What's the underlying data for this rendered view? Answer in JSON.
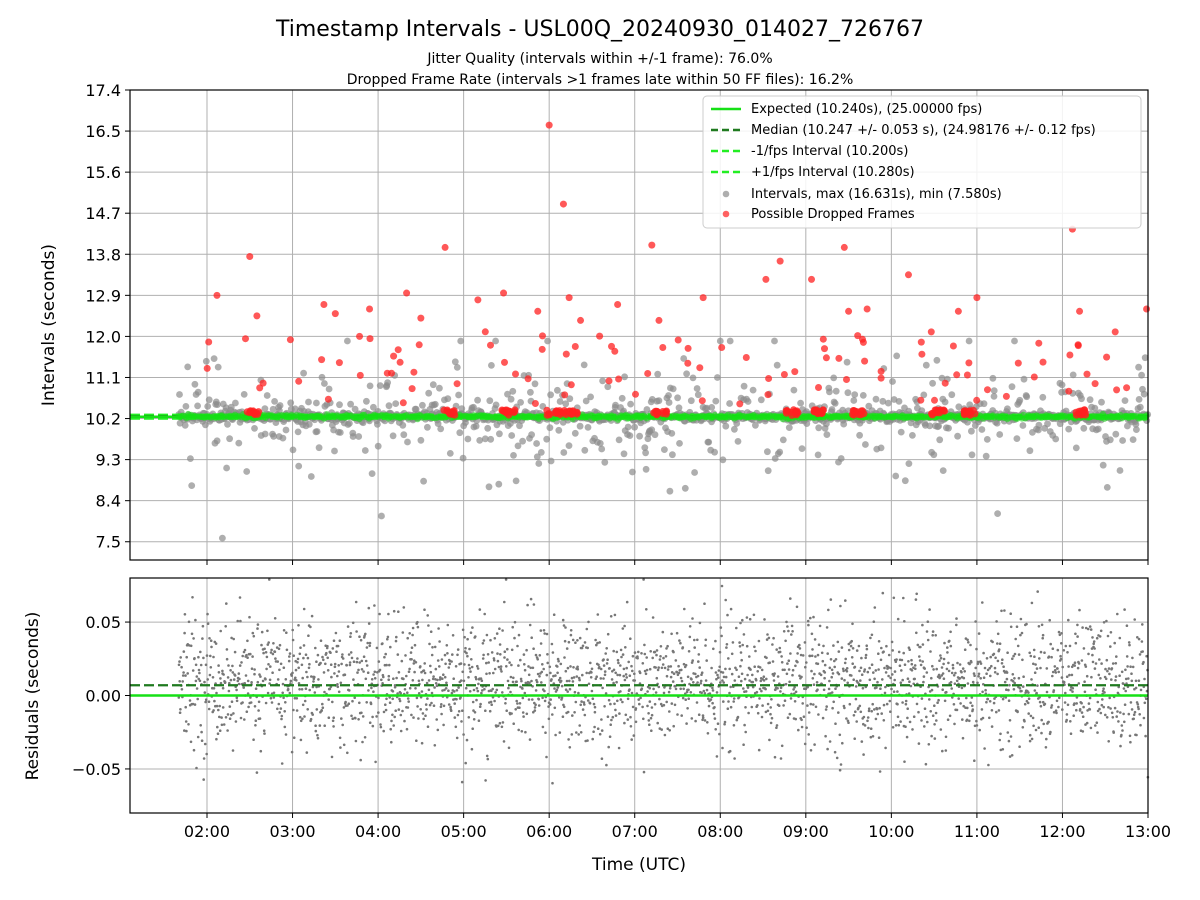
{
  "title": "Timestamp Intervals - USL00Q_20240930_014027_726767",
  "subtitle_line1": "Jitter Quality (intervals within +/-1 frame): 76.0%",
  "subtitle_line2": "Dropped Frame Rate (intervals >1 frames late within 50 FF files): 16.2%",
  "colors": {
    "expected": "#16e016",
    "median": "#1f7a1f",
    "interval_band": "#22ee22",
    "intervals": "#8c8c8c",
    "dropped": "#ff2020",
    "residual": "#777777",
    "grid": "#b0b0b0"
  },
  "chart_data": [
    {
      "type": "scatter",
      "name": "intervals-panel",
      "ylabel": "Intervals (seconds)",
      "ylim": [
        7.1,
        17.4
      ],
      "yticks": [
        "7.5",
        "8.4",
        "9.3",
        "10.2",
        "11.1",
        "12.0",
        "12.9",
        "13.8",
        "14.7",
        "15.6",
        "16.5",
        "17.4"
      ],
      "xlim_hours": [
        1.1,
        13.0
      ],
      "grid": true,
      "legend_position": "top-right",
      "legend": [
        "Expected (10.240s), (25.00000 fps)",
        "Median (10.247 +/- 0.053 s), (24.98176 +/- 0.12 fps)",
        "-1/fps Interval (10.200s)",
        "+1/fps Interval (10.280s)",
        "Intervals, max (16.631s), min (7.580s)",
        "Possible Dropped Frames"
      ],
      "expected_interval": 10.24,
      "median_interval": 10.247,
      "lower_interval": 10.2,
      "upper_interval": 10.28,
      "max_interval": 16.631,
      "min_interval": 7.58,
      "data_start_time": "01:40",
      "dropped_frames_sample": [
        {
          "t": "02:07",
          "y": 12.9
        },
        {
          "t": "02:27",
          "y": 11.95
        },
        {
          "t": "02:30",
          "y": 13.75
        },
        {
          "t": "02:35",
          "y": 12.45
        },
        {
          "t": "03:22",
          "y": 12.7
        },
        {
          "t": "03:30",
          "y": 12.5
        },
        {
          "t": "03:47",
          "y": 12.0
        },
        {
          "t": "03:54",
          "y": 12.6
        },
        {
          "t": "04:20",
          "y": 12.95
        },
        {
          "t": "04:30",
          "y": 12.4
        },
        {
          "t": "04:47",
          "y": 13.95
        },
        {
          "t": "05:10",
          "y": 12.8
        },
        {
          "t": "05:28",
          "y": 12.95
        },
        {
          "t": "05:52",
          "y": 12.55
        },
        {
          "t": "06:00",
          "y": 16.63
        },
        {
          "t": "06:10",
          "y": 14.9
        },
        {
          "t": "06:14",
          "y": 12.85
        },
        {
          "t": "06:22",
          "y": 12.35
        },
        {
          "t": "06:48",
          "y": 12.7
        },
        {
          "t": "07:12",
          "y": 14.0
        },
        {
          "t": "07:17",
          "y": 12.35
        },
        {
          "t": "07:48",
          "y": 12.85
        },
        {
          "t": "08:32",
          "y": 13.25
        },
        {
          "t": "08:42",
          "y": 13.65
        },
        {
          "t": "09:04",
          "y": 13.25
        },
        {
          "t": "09:27",
          "y": 13.95
        },
        {
          "t": "09:30",
          "y": 12.55
        },
        {
          "t": "09:43",
          "y": 12.6
        },
        {
          "t": "10:12",
          "y": 13.35
        },
        {
          "t": "10:28",
          "y": 12.1
        },
        {
          "t": "10:47",
          "y": 12.55
        },
        {
          "t": "11:00",
          "y": 12.85
        },
        {
          "t": "12:07",
          "y": 14.35
        },
        {
          "t": "12:12",
          "y": 12.55
        },
        {
          "t": "12:37",
          "y": 12.1
        },
        {
          "t": "12:59",
          "y": 12.6
        }
      ]
    },
    {
      "type": "scatter",
      "name": "residuals-panel",
      "ylabel": "Residuals (seconds)",
      "xlabel": "Time (UTC)",
      "ylim": [
        -0.08,
        0.08
      ],
      "yticks": [
        "−0.05",
        "0.00",
        "0.05"
      ],
      "xticks": [
        "02:00",
        "03:00",
        "04:00",
        "05:00",
        "06:00",
        "07:00",
        "08:00",
        "09:00",
        "10:00",
        "11:00",
        "12:00",
        "13:00"
      ],
      "xlim_hours": [
        1.1,
        13.0
      ],
      "grid": true,
      "expected_residual": 0.0,
      "median_residual": 0.007
    }
  ]
}
